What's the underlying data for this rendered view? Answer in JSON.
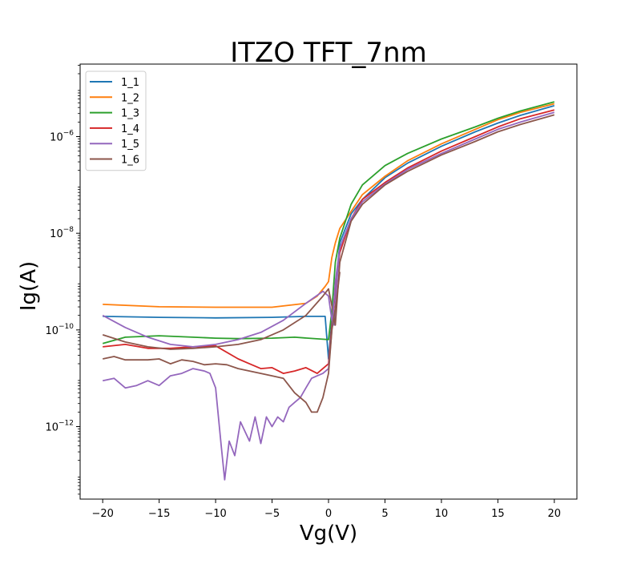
{
  "chart_data": {
    "type": "line",
    "title": "ITZO TFT_7nm",
    "xlabel": "Vg(V)",
    "ylabel": "Ig(A)",
    "xlim": [
      -22,
      22
    ],
    "ylim_log10": [
      -13.5,
      -4.5
    ],
    "yscale": "log",
    "grid": false,
    "legend_position": "top-left",
    "x_ticks": [
      -20,
      -15,
      -10,
      -5,
      0,
      5,
      10,
      15,
      20
    ],
    "x_tick_labels": [
      "−20",
      "−15",
      "−10",
      "−5",
      "0",
      "5",
      "10",
      "15",
      "20"
    ],
    "y_ticks_log10": [
      -12,
      -10,
      -8,
      -6
    ],
    "y_tick_base": "10",
    "y_tick_exponents": [
      "−12",
      "−10",
      "−8",
      "−6"
    ],
    "series": [
      {
        "name": "1_1",
        "color": "#1f77b4",
        "points": [
          [
            -20,
            -9.72
          ],
          [
            -15,
            -9.74
          ],
          [
            -10,
            -9.75
          ],
          [
            -5,
            -9.74
          ],
          [
            -2,
            -9.72
          ],
          [
            -0.3,
            -9.72
          ],
          [
            0,
            -10.6
          ],
          [
            0.3,
            -9.8
          ],
          [
            0.6,
            -9.2
          ],
          [
            1,
            -8.2
          ],
          [
            1.5,
            -7.9
          ],
          [
            2,
            -7.6
          ],
          [
            3,
            -7.3
          ],
          [
            5,
            -6.85
          ],
          [
            7,
            -6.55
          ],
          [
            10,
            -6.2
          ],
          [
            13,
            -5.9
          ],
          [
            15,
            -5.72
          ],
          [
            17,
            -5.56
          ],
          [
            20,
            -5.36
          ]
        ]
      },
      {
        "name": "1_2",
        "color": "#ff7f0e",
        "points": [
          [
            -20,
            -9.47
          ],
          [
            -15,
            -9.52
          ],
          [
            -10,
            -9.53
          ],
          [
            -5,
            -9.53
          ],
          [
            -2,
            -9.45
          ],
          [
            -1,
            -9.3
          ],
          [
            -0.3,
            -9.1
          ],
          [
            0,
            -9.0
          ],
          [
            0.3,
            -8.5
          ],
          [
            0.6,
            -8.2
          ],
          [
            1,
            -7.9
          ],
          [
            2,
            -7.55
          ],
          [
            3,
            -7.2
          ],
          [
            5,
            -6.82
          ],
          [
            7,
            -6.5
          ],
          [
            10,
            -6.15
          ],
          [
            13,
            -5.85
          ],
          [
            15,
            -5.65
          ],
          [
            17,
            -5.5
          ],
          [
            20,
            -5.32
          ]
        ]
      },
      {
        "name": "1_3",
        "color": "#2ca02c",
        "points": [
          [
            -20,
            -10.28
          ],
          [
            -18,
            -10.15
          ],
          [
            -15,
            -10.12
          ],
          [
            -12,
            -10.15
          ],
          [
            -10,
            -10.17
          ],
          [
            -8,
            -10.18
          ],
          [
            -5,
            -10.17
          ],
          [
            -3,
            -10.15
          ],
          [
            0,
            -10.2
          ],
          [
            0.3,
            -9.6
          ],
          [
            0.6,
            -8.6
          ],
          [
            1,
            -8.1
          ],
          [
            2,
            -7.4
          ],
          [
            3,
            -7.0
          ],
          [
            5,
            -6.6
          ],
          [
            7,
            -6.35
          ],
          [
            10,
            -6.05
          ],
          [
            13,
            -5.8
          ],
          [
            15,
            -5.62
          ],
          [
            17,
            -5.47
          ],
          [
            20,
            -5.28
          ]
        ]
      },
      {
        "name": "1_4",
        "color": "#d62728",
        "points": [
          [
            -20,
            -10.35
          ],
          [
            -18,
            -10.3
          ],
          [
            -16,
            -10.38
          ],
          [
            -14,
            -10.38
          ],
          [
            -12,
            -10.35
          ],
          [
            -10,
            -10.33
          ],
          [
            -8,
            -10.6
          ],
          [
            -7,
            -10.7
          ],
          [
            -6,
            -10.8
          ],
          [
            -5,
            -10.78
          ],
          [
            -4,
            -10.9
          ],
          [
            -3,
            -10.85
          ],
          [
            -2,
            -10.78
          ],
          [
            -1,
            -10.9
          ],
          [
            0,
            -10.7
          ],
          [
            0.3,
            -9.9
          ],
          [
            0.6,
            -9.2
          ],
          [
            1,
            -8.4
          ],
          [
            2,
            -7.7
          ],
          [
            3,
            -7.3
          ],
          [
            5,
            -6.95
          ],
          [
            7,
            -6.65
          ],
          [
            10,
            -6.3
          ],
          [
            13,
            -6.0
          ],
          [
            15,
            -5.8
          ],
          [
            17,
            -5.63
          ],
          [
            20,
            -5.45
          ]
        ]
      },
      {
        "name": "1_5",
        "color": "#9467bd",
        "points": [
          [
            -20,
            -9.7
          ],
          [
            -18,
            -9.95
          ],
          [
            -16,
            -10.15
          ],
          [
            -14,
            -10.3
          ],
          [
            -12,
            -10.35
          ],
          [
            -10,
            -10.3
          ],
          [
            -8,
            -10.2
          ],
          [
            -6,
            -10.05
          ],
          [
            -4,
            -9.8
          ],
          [
            -2,
            -9.45
          ],
          [
            -0.5,
            -9.2
          ],
          [
            0,
            -9.3
          ],
          [
            0.3,
            -9.8
          ],
          [
            0.5,
            -9.9
          ],
          [
            0.8,
            -8.8
          ],
          [
            1,
            -8.3
          ],
          [
            2,
            -7.7
          ],
          [
            3,
            -7.35
          ],
          [
            5,
            -6.98
          ],
          [
            7,
            -6.68
          ],
          [
            10,
            -6.35
          ],
          [
            13,
            -6.05
          ],
          [
            15,
            -5.85
          ],
          [
            17,
            -5.7
          ],
          [
            20,
            -5.5
          ]
        ]
      },
      {
        "name": "1_6",
        "color": "#8c564b",
        "points": [
          [
            -20,
            -10.1
          ],
          [
            -18,
            -10.25
          ],
          [
            -16,
            -10.35
          ],
          [
            -14,
            -10.4
          ],
          [
            -12,
            -10.38
          ],
          [
            -10,
            -10.35
          ],
          [
            -8,
            -10.3
          ],
          [
            -6,
            -10.2
          ],
          [
            -4,
            -10.0
          ],
          [
            -2,
            -9.7
          ],
          [
            -0.5,
            -9.3
          ],
          [
            0,
            -9.15
          ],
          [
            0.3,
            -9.5
          ],
          [
            0.6,
            -9.9
          ],
          [
            1,
            -8.6
          ],
          [
            2,
            -7.75
          ],
          [
            3,
            -7.4
          ],
          [
            5,
            -7.0
          ],
          [
            7,
            -6.72
          ],
          [
            10,
            -6.38
          ],
          [
            13,
            -6.1
          ],
          [
            15,
            -5.9
          ],
          [
            17,
            -5.75
          ],
          [
            20,
            -5.55
          ]
        ]
      },
      {
        "name": "1_5",
        "color": "#9467bd",
        "legend": false,
        "points": [
          [
            -20,
            -11.05
          ],
          [
            -19,
            -11.0
          ],
          [
            -18,
            -11.2
          ],
          [
            -17,
            -11.15
          ],
          [
            -16,
            -11.05
          ],
          [
            -15,
            -11.15
          ],
          [
            -14,
            -10.95
          ],
          [
            -13,
            -10.9
          ],
          [
            -12,
            -10.8
          ],
          [
            -11,
            -10.85
          ],
          [
            -10.5,
            -10.9
          ],
          [
            -10,
            -11.2
          ],
          [
            -9.5,
            -12.4
          ],
          [
            -9.2,
            -13.1
          ],
          [
            -8.8,
            -12.3
          ],
          [
            -8.3,
            -12.6
          ],
          [
            -7.8,
            -11.9
          ],
          [
            -7,
            -12.3
          ],
          [
            -6.5,
            -11.8
          ],
          [
            -6,
            -12.35
          ],
          [
            -5.5,
            -11.8
          ],
          [
            -5,
            -12.0
          ],
          [
            -4.5,
            -11.8
          ],
          [
            -4,
            -11.9
          ],
          [
            -3.5,
            -11.6
          ],
          [
            -3,
            -11.5
          ],
          [
            -2.5,
            -11.4
          ],
          [
            -2,
            -11.2
          ],
          [
            -1.5,
            -11.0
          ],
          [
            -1,
            -10.95
          ],
          [
            -0.5,
            -10.9
          ],
          [
            0,
            -10.8
          ],
          [
            0.3,
            -10.0
          ],
          [
            0.6,
            -9.0
          ],
          [
            1,
            -8.3
          ]
        ]
      },
      {
        "name": "1_6",
        "color": "#8c564b",
        "legend": false,
        "points": [
          [
            -20,
            -10.6
          ],
          [
            -19,
            -10.55
          ],
          [
            -18,
            -10.62
          ],
          [
            -17,
            -10.62
          ],
          [
            -16,
            -10.62
          ],
          [
            -15,
            -10.6
          ],
          [
            -14,
            -10.7
          ],
          [
            -13,
            -10.62
          ],
          [
            -12,
            -10.65
          ],
          [
            -11,
            -10.72
          ],
          [
            -10,
            -10.7
          ],
          [
            -9,
            -10.72
          ],
          [
            -8,
            -10.8
          ],
          [
            -7,
            -10.85
          ],
          [
            -6,
            -10.9
          ],
          [
            -5,
            -10.95
          ],
          [
            -4,
            -11.0
          ],
          [
            -3,
            -11.3
          ],
          [
            -2,
            -11.5
          ],
          [
            -1.5,
            -11.7
          ],
          [
            -1,
            -11.7
          ],
          [
            -0.5,
            -11.4
          ],
          [
            0,
            -10.9
          ],
          [
            0.3,
            -10.0
          ],
          [
            0.7,
            -9.4
          ],
          [
            1,
            -8.8
          ]
        ]
      }
    ]
  }
}
